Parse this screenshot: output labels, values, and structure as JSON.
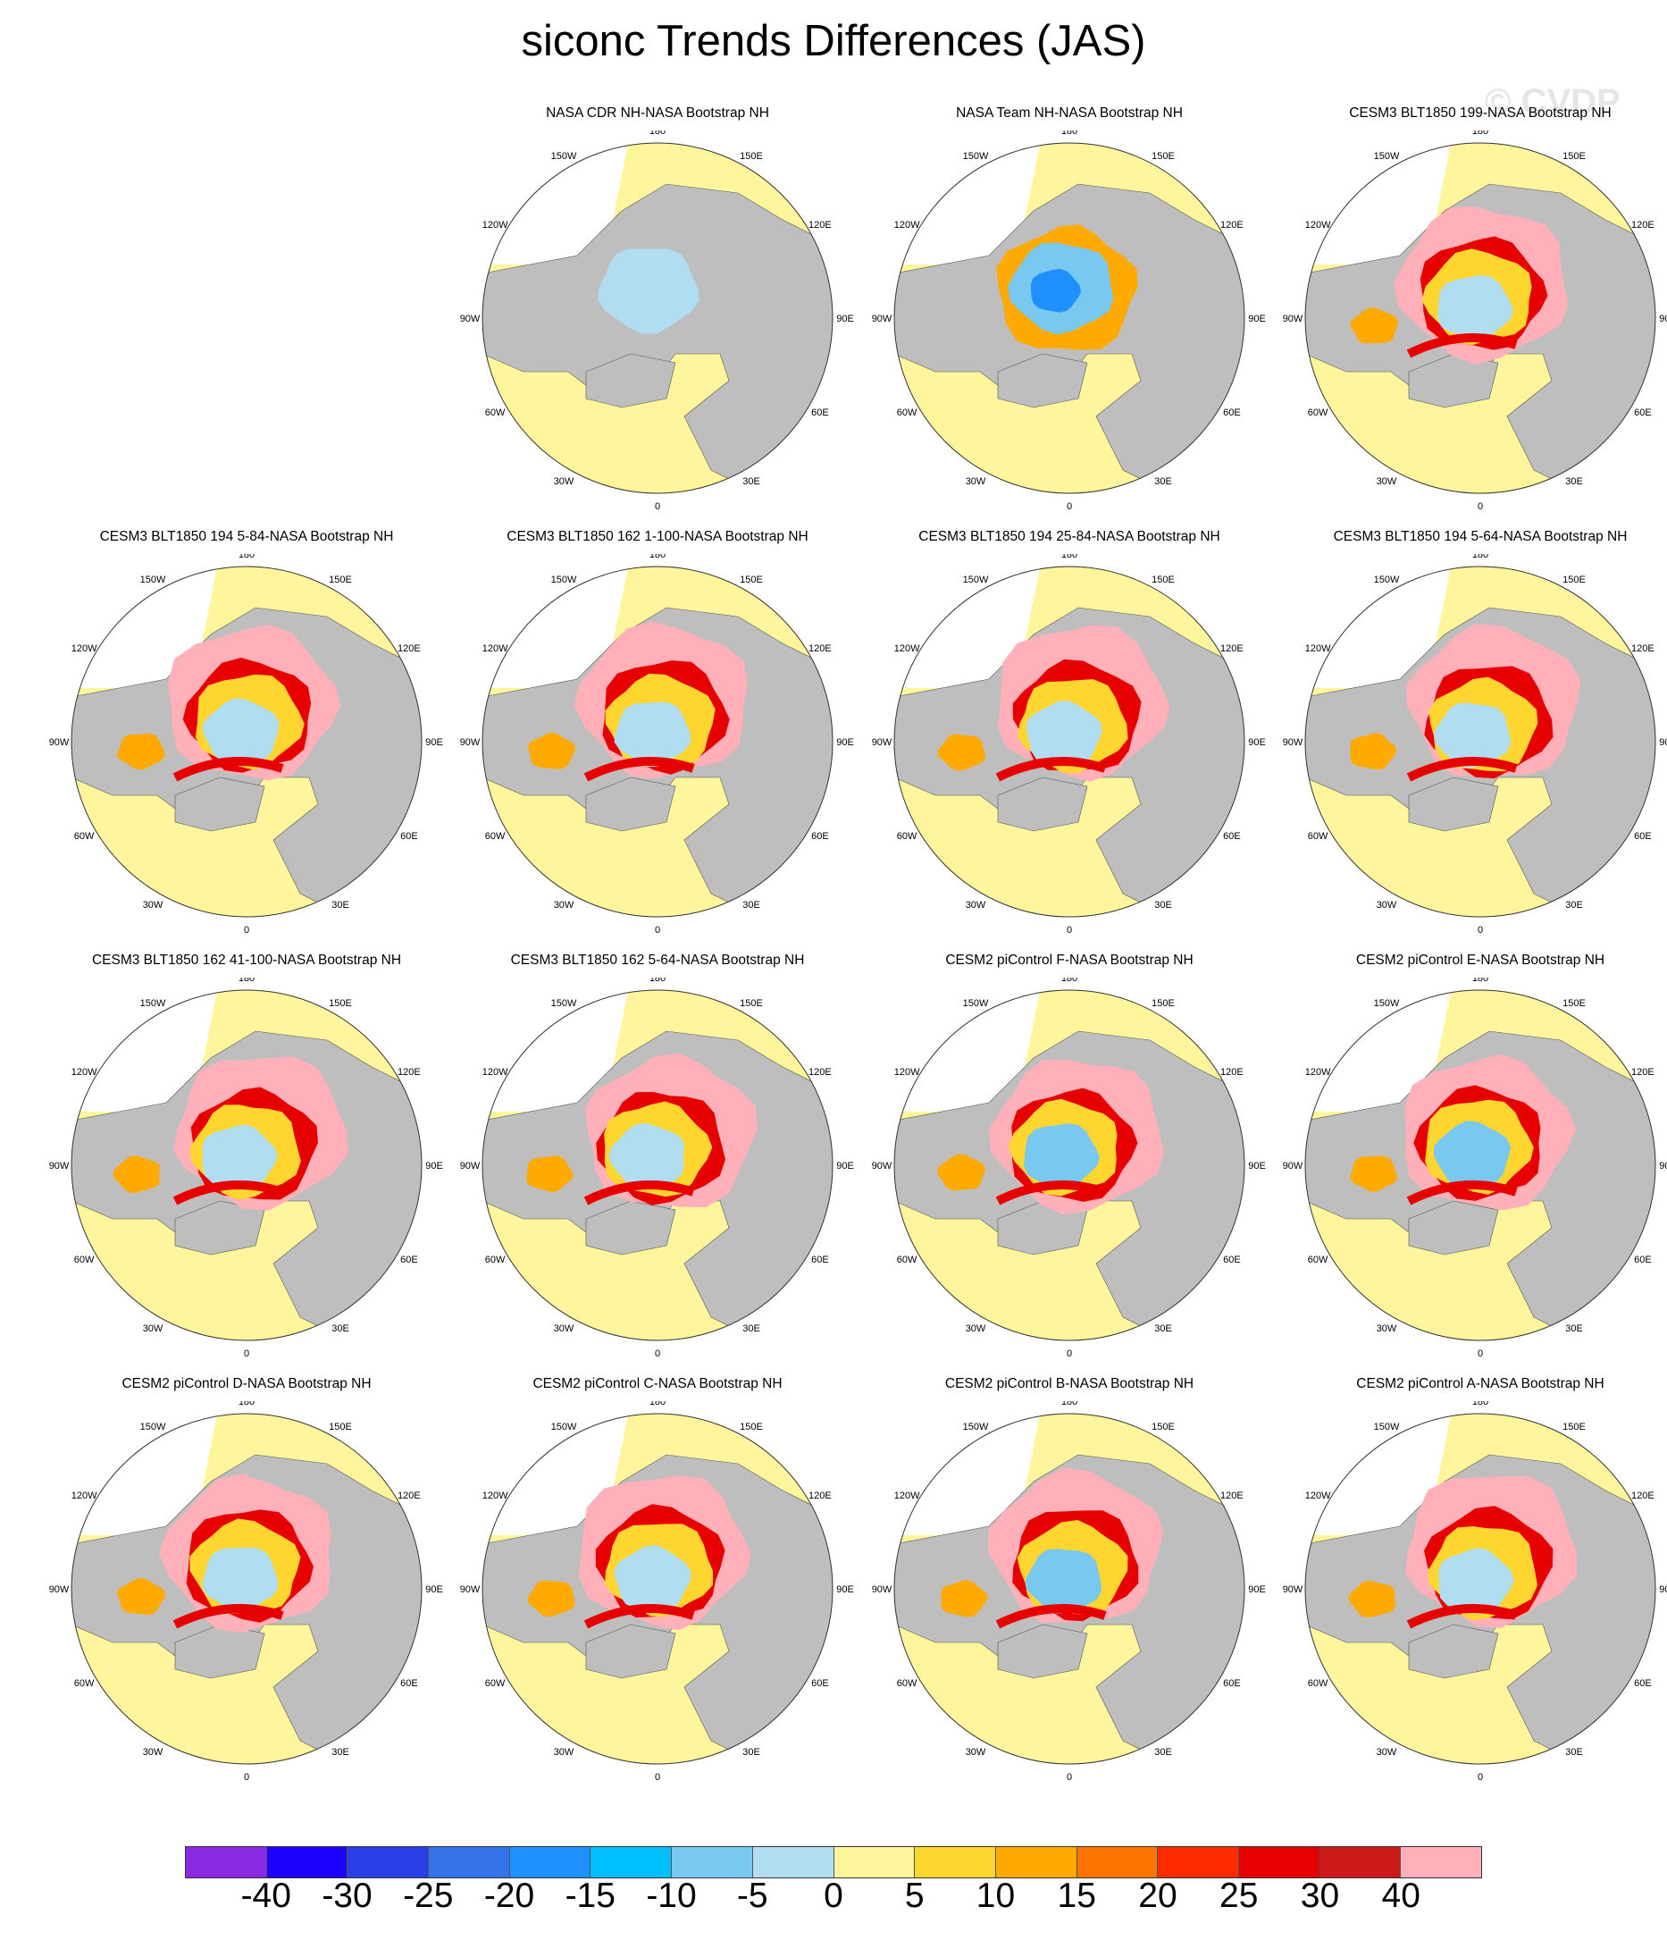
{
  "title": "siconc Trends Differences (JAS)",
  "watermark": "© CVDP",
  "lon_labels": {
    "top": "180",
    "bottom": "0",
    "left": "90W",
    "right": "90E",
    "upper_left_1": "150W",
    "upper_left_2": "120W",
    "upper_right_1": "150E",
    "upper_right_2": "120E",
    "lower_left_1": "60W",
    "lower_left_2": "30W",
    "lower_right_1": "60E",
    "lower_right_2": "30E"
  },
  "panels": [
    {
      "title": "NASA CDR NH-NASA Bootstrap NH",
      "level": 0
    },
    {
      "title": "NASA Team NH-NASA Bootstrap NH",
      "level": 1
    },
    {
      "title": "CESM3 BLT1850 199-NASA Bootstrap NH",
      "level": 3
    },
    {
      "title": "CESM3 BLT1850 194 5-84-NASA Bootstrap NH",
      "level": 3
    },
    {
      "title": "CESM3 BLT1850 162 1-100-NASA Bootstrap NH",
      "level": 3
    },
    {
      "title": "CESM3 BLT1850 194 25-84-NASA Bootstrap NH",
      "level": 3
    },
    {
      "title": "CESM3 BLT1850 194 5-64-NASA Bootstrap NH",
      "level": 3
    },
    {
      "title": "CESM3 BLT1850 162 41-100-NASA Bootstrap NH",
      "level": 3
    },
    {
      "title": "CESM3 BLT1850 162 5-64-NASA Bootstrap NH",
      "level": 3
    },
    {
      "title": "CESM2 piControl F-NASA Bootstrap NH",
      "level": 2
    },
    {
      "title": "CESM2 piControl E-NASA Bootstrap NH",
      "level": 2
    },
    {
      "title": "CESM2 piControl D-NASA Bootstrap NH",
      "level": 3
    },
    {
      "title": "CESM2 piControl C-NASA Bootstrap NH",
      "level": 3
    },
    {
      "title": "CESM2 piControl B-NASA Bootstrap NH",
      "level": 2
    },
    {
      "title": "CESM2 piControl A-NASA Bootstrap NH",
      "level": 3
    }
  ],
  "colorbar": {
    "colors": [
      "#8a2be2",
      "#1e00ff",
      "#2b3fe8",
      "#3474e8",
      "#1e90ff",
      "#00bfff",
      "#78c8f0",
      "#b0def0",
      "#fff59d",
      "#ffd630",
      "#ffaa00",
      "#ff7300",
      "#ff2a00",
      "#e60000",
      "#cc1a1a",
      "#ffb0b8"
    ],
    "labels": [
      "-40",
      "-30",
      "-25",
      "-20",
      "-15",
      "-10",
      "-5",
      "0",
      "5",
      "10",
      "15",
      "20",
      "25",
      "30",
      "40"
    ]
  }
}
